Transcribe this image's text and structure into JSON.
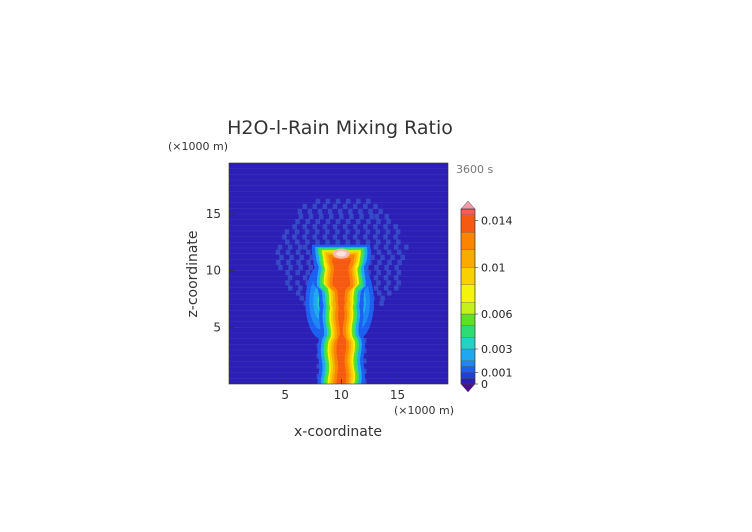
{
  "chart_data": {
    "type": "heatmap",
    "title": "H2O-l-Rain Mixing Ratio",
    "time_label": "3600 s",
    "xlabel": "x-coordinate",
    "ylabel": "z-coordinate",
    "x_units": "(×1000 m)",
    "y_units": "(×1000 m)",
    "xlim": [
      0,
      19.5
    ],
    "ylim": [
      0,
      19.5
    ],
    "x_ticks": [
      5,
      10,
      15
    ],
    "y_ticks": [
      5,
      10,
      15
    ],
    "colorbar": {
      "range": [
        0,
        0.015
      ],
      "ticks": [
        0,
        0.001,
        0.003,
        0.006,
        0.01,
        0.014
      ],
      "tick_labels": [
        "0",
        "0.001",
        "0.003",
        "0.006",
        "0.01",
        "0.014"
      ],
      "levels": [
        {
          "value": 0.0,
          "color": "#2c1fb5"
        },
        {
          "value": 0.0005,
          "color": "#1e40d8"
        },
        {
          "value": 0.001,
          "color": "#1b5ff0"
        },
        {
          "value": 0.0015,
          "color": "#1c86f5"
        },
        {
          "value": 0.002,
          "color": "#1fa8f0"
        },
        {
          "value": 0.003,
          "color": "#22d2c2"
        },
        {
          "value": 0.004,
          "color": "#2ddc73"
        },
        {
          "value": 0.005,
          "color": "#5fe020"
        },
        {
          "value": 0.006,
          "color": "#c6f01a"
        },
        {
          "value": 0.007,
          "color": "#f4f40a"
        },
        {
          "value": 0.0085,
          "color": "#f9d100"
        },
        {
          "value": 0.01,
          "color": "#fbab00"
        },
        {
          "value": 0.0115,
          "color": "#fb8400"
        },
        {
          "value": 0.013,
          "color": "#f55a10"
        },
        {
          "value": 0.0145,
          "color": "#ff5a5a"
        }
      ],
      "under_color": "#4a0d8f",
      "over_color": "#f39aa8"
    },
    "columns": [
      {
        "z_min": 0.0,
        "z_max": 11.7,
        "x_center": 10.0,
        "peak": 0.0135,
        "note": "core shaft"
      },
      {
        "z_min": 4.0,
        "z_max": 10.5,
        "x_center": 8.2,
        "peak": 0.0035
      },
      {
        "z_min": 4.0,
        "z_max": 10.5,
        "x_center": 11.5,
        "peak": 0.0035
      },
      {
        "z_min": 6.0,
        "z_max": 16.0,
        "x_center": 10.0,
        "peak": 0.0004,
        "note": "faint halo"
      }
    ]
  }
}
